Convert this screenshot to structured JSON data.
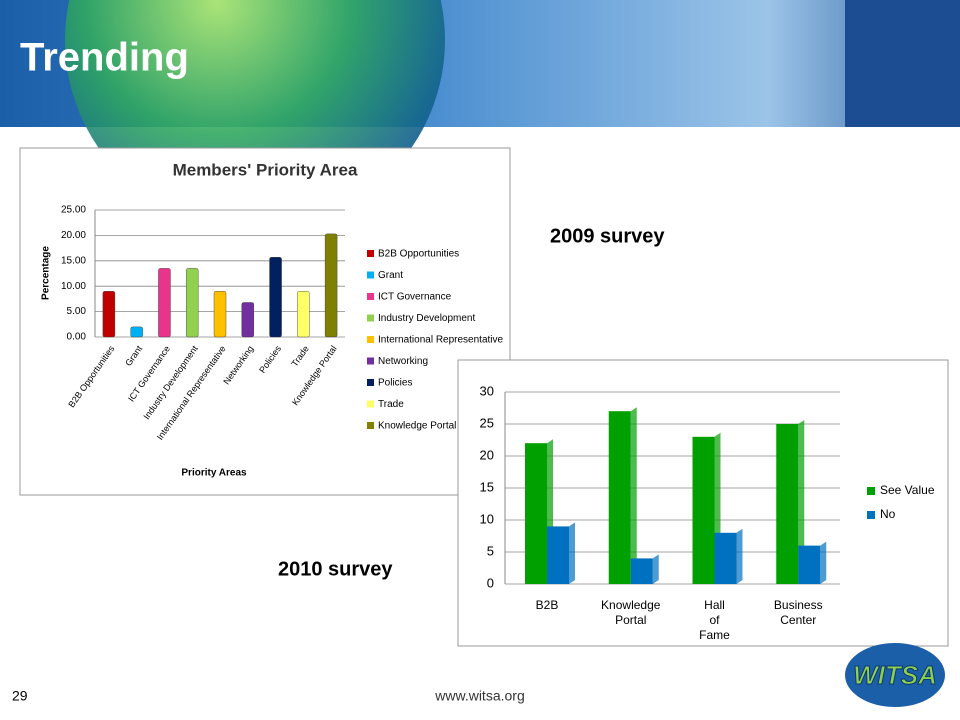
{
  "slide": {
    "title": "Trending",
    "label_2009": "2009 survey",
    "label_2010": "2010 survey",
    "page_number": "29",
    "footer_url": "www.witsa.org",
    "logo_text": "WITSA"
  },
  "chart_data": [
    {
      "type": "bar",
      "title": "Members' Priority Area",
      "y_label": "Percentage",
      "x_label": "Priority Areas",
      "categories": [
        "B2B Opportunities",
        "Grant",
        "ICT Governance",
        "Industry Development",
        "International Representative",
        "Networking",
        "Policies",
        "Trade",
        "Knowledge Portal"
      ],
      "values": [
        9,
        2,
        13.5,
        13.5,
        9,
        6.8,
        15.7,
        9,
        20.3
      ],
      "colors": [
        "#c00000",
        "#00b0f0",
        "#e8358c",
        "#92d050",
        "#ffc000",
        "#7030a0",
        "#002060",
        "#ffff66",
        "#7f7f00"
      ],
      "ylim": [
        0,
        25
      ],
      "yticks": [
        {
          "value": 0,
          "label": "0.00"
        },
        {
          "value": 5,
          "label": "5.00"
        },
        {
          "value": 10,
          "label": "10.00"
        },
        {
          "value": 15,
          "label": "15.00"
        },
        {
          "value": 20,
          "label": "20.00"
        },
        {
          "value": 25,
          "label": "25.00"
        }
      ],
      "grid": true,
      "legend": "right"
    },
    {
      "type": "grouped_bar",
      "categories": [
        "B2B",
        "Knowledge Portal",
        "Hall of Fame",
        "Business Center"
      ],
      "series": [
        {
          "name": "See Value",
          "color": "#00a000",
          "values": [
            22,
            27,
            23,
            25
          ]
        },
        {
          "name": "No",
          "color": "#0070c0",
          "values": [
            9,
            4,
            8,
            6
          ]
        }
      ],
      "ylim": [
        0,
        30
      ],
      "yticks": [
        0,
        5,
        10,
        15,
        20,
        25,
        30
      ],
      "grid": true,
      "legend": "right"
    }
  ]
}
